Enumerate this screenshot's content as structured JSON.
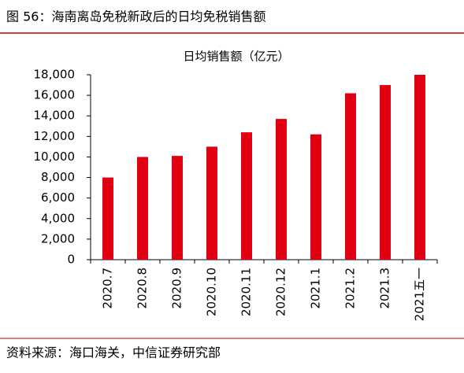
{
  "header": {
    "title": "图 56：海南离岛免税新政后的日均免税销售额"
  },
  "chart_data": {
    "type": "bar",
    "title": "日均销售额（亿元）",
    "categories": [
      "2020.7",
      "2020.8",
      "2020.9",
      "2020.10",
      "2020.11",
      "2020.12",
      "2021.1",
      "2021.2",
      "2021.3",
      "2021五一"
    ],
    "values": [
      8000,
      10000,
      10100,
      11000,
      12400,
      13700,
      12200,
      16200,
      17000,
      18000
    ],
    "color": "#e00012",
    "ylim": [
      0,
      18000
    ],
    "yticks": [
      0,
      {
        "value": 2000,
        "label": "2,000"
      },
      {
        "value": 4000,
        "label": "4,000"
      },
      {
        "value": 6000,
        "label": "6,000"
      },
      {
        "value": 8000,
        "label": "8,000"
      },
      {
        "value": 10000,
        "label": "10,000"
      },
      {
        "value": 12000,
        "label": "12,000"
      },
      {
        "value": 14000,
        "label": "14,000"
      },
      {
        "value": 16000,
        "label": "16,000"
      },
      {
        "value": 18000,
        "label": "18,000"
      }
    ],
    "grid": false
  },
  "footer": {
    "source": "资料来源：海口海关，中信证券研究部"
  }
}
